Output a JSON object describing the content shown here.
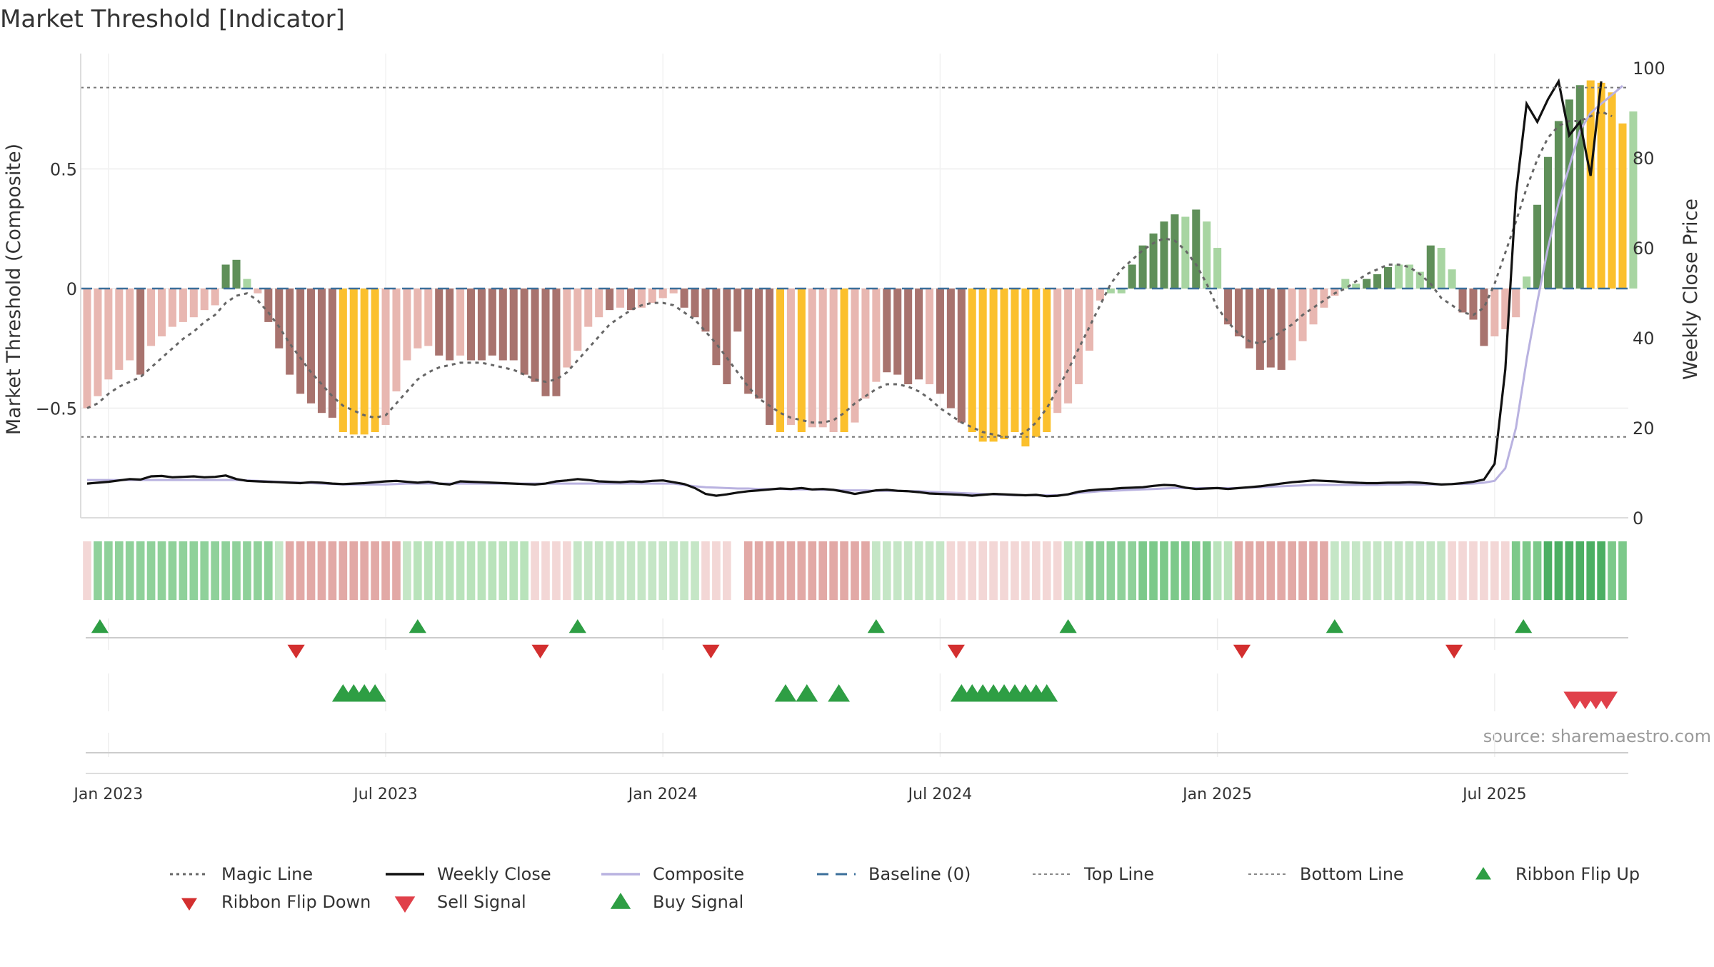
{
  "chart_data": {
    "type": "bar",
    "title": "Market Threshold [Indicator]",
    "ylabel": "Market Threshold (Composite)",
    "y2label": "Weekly Close Price",
    "source": "source: sharemaestro.com",
    "ylim": [
      -1.0,
      1.0
    ],
    "y2lim": [
      0,
      100
    ],
    "yticks": [
      {
        "v": 0.5,
        "t": "0.5"
      },
      {
        "v": 0,
        "t": "0"
      },
      {
        "v": -0.5,
        "t": "−0.5"
      }
    ],
    "y2ticks": [
      {
        "v": 0,
        "t": "0"
      },
      {
        "v": 20,
        "t": "20"
      },
      {
        "v": 40,
        "t": "40"
      },
      {
        "v": 60,
        "t": "60"
      },
      {
        "v": 80,
        "t": "80"
      },
      {
        "v": 100,
        "t": "100"
      }
    ],
    "xticks": [
      {
        "week": 2,
        "label": "Jan 2023"
      },
      {
        "week": 28,
        "label": "Jul 2023"
      },
      {
        "week": 54,
        "label": "Jan 2024"
      },
      {
        "week": 80,
        "label": "Jul 2024"
      },
      {
        "week": 106,
        "label": "Jan 2025"
      },
      {
        "week": 132,
        "label": "Jul 2025"
      }
    ],
    "weeks_total": 145,
    "top_line": 0.84,
    "bottom_line": -0.62,
    "colors": {
      "light_pink": "#e8b7b1",
      "dark_brown": "#a8736e",
      "yellow": "#fbc02d",
      "light_green": "#a8d5a2",
      "dark_green": "#5f8f59",
      "magic": "#666666",
      "close": "#111111",
      "composite": "#b9b2e0",
      "baseline": "#3b6f9a",
      "buy": "#2e9e44",
      "sell": "#d32f2f",
      "sell2": "#e0404a"
    },
    "series": [
      {
        "name": "Market Threshold (Composite)",
        "kind": "bars",
        "values": [
          -0.5,
          -0.45,
          -0.38,
          -0.34,
          -0.3,
          -0.36,
          -0.24,
          -0.2,
          -0.16,
          -0.14,
          -0.12,
          -0.09,
          -0.07,
          0.1,
          0.12,
          0.04,
          -0.02,
          -0.14,
          -0.25,
          -0.36,
          -0.44,
          -0.48,
          -0.52,
          -0.54,
          -0.6,
          -0.61,
          -0.61,
          -0.6,
          -0.57,
          -0.43,
          -0.3,
          -0.25,
          -0.24,
          -0.28,
          -0.3,
          -0.28,
          -0.3,
          -0.3,
          -0.28,
          -0.3,
          -0.3,
          -0.36,
          -0.39,
          -0.45,
          -0.45,
          -0.33,
          -0.26,
          -0.16,
          -0.12,
          -0.09,
          -0.08,
          -0.09,
          -0.08,
          -0.06,
          -0.04,
          -0.02,
          -0.08,
          -0.12,
          -0.18,
          -0.32,
          -0.4,
          -0.18,
          -0.44,
          -0.46,
          -0.57,
          -0.6,
          -0.57,
          -0.6,
          -0.58,
          -0.58,
          -0.6,
          -0.6,
          -0.56,
          -0.46,
          -0.39,
          -0.35,
          -0.36,
          -0.4,
          -0.38,
          -0.4,
          -0.44,
          -0.5,
          -0.56,
          -0.6,
          -0.64,
          -0.64,
          -0.63,
          -0.6,
          -0.66,
          -0.62,
          -0.6,
          -0.52,
          -0.48,
          -0.4,
          -0.26,
          -0.05,
          -0.02,
          -0.02,
          0.1,
          0.18,
          0.23,
          0.28,
          0.31,
          0.3,
          0.33,
          0.28,
          0.17,
          -0.15,
          -0.2,
          -0.25,
          -0.34,
          -0.33,
          -0.34,
          -0.3,
          -0.22,
          -0.15,
          -0.08,
          -0.03,
          0.04,
          0.02,
          0.04,
          0.06,
          0.09,
          0.1,
          0.1,
          0.07,
          0.18,
          0.17,
          0.08,
          -0.1,
          -0.13,
          -0.24,
          -0.2,
          -0.17,
          -0.12,
          0.05,
          0.35,
          0.55,
          0.7,
          0.79,
          0.85,
          0.87,
          0.86,
          0.82,
          0.69,
          0.74
        ],
        "legend_color_key": "light_pink"
      },
      {
        "name": "Magic Line",
        "kind": "line",
        "values": [
          -0.5,
          -0.48,
          -0.44,
          -0.41,
          -0.39,
          -0.37,
          -0.33,
          -0.29,
          -0.25,
          -0.21,
          -0.18,
          -0.14,
          -0.11,
          -0.06,
          -0.03,
          -0.02,
          -0.05,
          -0.1,
          -0.16,
          -0.23,
          -0.29,
          -0.35,
          -0.4,
          -0.45,
          -0.49,
          -0.51,
          -0.53,
          -0.54,
          -0.53,
          -0.48,
          -0.43,
          -0.38,
          -0.35,
          -0.33,
          -0.32,
          -0.31,
          -0.31,
          -0.31,
          -0.32,
          -0.33,
          -0.34,
          -0.36,
          -0.38,
          -0.39,
          -0.38,
          -0.35,
          -0.3,
          -0.25,
          -0.2,
          -0.15,
          -0.12,
          -0.09,
          -0.07,
          -0.06,
          -0.06,
          -0.07,
          -0.1,
          -0.13,
          -0.18,
          -0.23,
          -0.29,
          -0.35,
          -0.41,
          -0.46,
          -0.49,
          -0.52,
          -0.54,
          -0.55,
          -0.56,
          -0.56,
          -0.55,
          -0.52,
          -0.48,
          -0.45,
          -0.42,
          -0.4,
          -0.4,
          -0.41,
          -0.43,
          -0.46,
          -0.5,
          -0.53,
          -0.56,
          -0.58,
          -0.6,
          -0.61,
          -0.62,
          -0.62,
          -0.6,
          -0.56,
          -0.5,
          -0.42,
          -0.34,
          -0.25,
          -0.16,
          -0.07,
          0.02,
          0.08,
          0.12,
          0.16,
          0.19,
          0.21,
          0.2,
          0.16,
          0.1,
          0.02,
          -0.08,
          -0.14,
          -0.19,
          -0.22,
          -0.23,
          -0.21,
          -0.18,
          -0.15,
          -0.11,
          -0.08,
          -0.05,
          -0.02,
          0,
          0.03,
          0.06,
          0.08,
          0.1,
          0.1,
          0.09,
          0.06,
          0.02,
          -0.04,
          -0.07,
          -0.1,
          -0.11,
          -0.08,
          0.02,
          0.15,
          0.28,
          0.42,
          0.54,
          0.63,
          0.68,
          0.7,
          0.7,
          0.72,
          0.74,
          0.72
        ],
        "legend_color_key": "magic"
      },
      {
        "name": "Weekly Close",
        "kind": "line",
        "axis": "right",
        "values": [
          7.6,
          7.8,
          8,
          8.3,
          8.6,
          8.5,
          9.2,
          9.3,
          9,
          9.1,
          9.2,
          9,
          9.1,
          9.4,
          8.6,
          8.2,
          8.1,
          8,
          7.9,
          7.8,
          7.7,
          7.9,
          7.8,
          7.6,
          7.5,
          7.6,
          7.7,
          7.9,
          8.1,
          8.2,
          8,
          7.8,
          8,
          7.6,
          7.4,
          8.1,
          8,
          7.9,
          7.8,
          7.7,
          7.6,
          7.5,
          7.4,
          7.6,
          8.1,
          8.3,
          8.6,
          8.4,
          8.1,
          8,
          7.9,
          8.1,
          8,
          8.2,
          8.3,
          7.9,
          7.5,
          6.6,
          5.3,
          4.9,
          5.2,
          5.6,
          5.9,
          6.1,
          6.3,
          6.5,
          6.4,
          6.6,
          6.3,
          6.4,
          6.2,
          5.8,
          5.3,
          5.7,
          6.1,
          6.2,
          6,
          5.9,
          5.7,
          5.4,
          5.3,
          5.2,
          5.1,
          4.9,
          5.1,
          5.3,
          5.2,
          5.1,
          5,
          5.1,
          4.8,
          4.9,
          5.2,
          5.8,
          6.1,
          6.3,
          6.4,
          6.6,
          6.7,
          6.8,
          7.1,
          7.3,
          7.2,
          6.7,
          6.4,
          6.5,
          6.6,
          6.4,
          6.6,
          6.8,
          7,
          7.3,
          7.6,
          7.9,
          8.1,
          8.3,
          8.2,
          8.1,
          7.9,
          7.8,
          7.7,
          7.7,
          7.8,
          7.8,
          7.9,
          7.8,
          7.6,
          7.4,
          7.5,
          7.7,
          8,
          8.5,
          12,
          33,
          72,
          92,
          88,
          93,
          97,
          85,
          88,
          76,
          97
        ],
        "legend_color_key": "close"
      },
      {
        "name": "Composite",
        "kind": "line",
        "axis": "right",
        "values": [
          8.4,
          8.4,
          8.4,
          8.4,
          8.4,
          8.4,
          8.4,
          8.4,
          8.4,
          8.4,
          8.4,
          8.4,
          8.4,
          8.4,
          8.4,
          8.3,
          8.2,
          8.1,
          8,
          7.9,
          7.8,
          7.7,
          7.6,
          7.5,
          7.4,
          7.4,
          7.4,
          7.4,
          7.4,
          7.5,
          7.6,
          7.6,
          7.6,
          7.6,
          7.6,
          7.6,
          7.6,
          7.6,
          7.6,
          7.6,
          7.6,
          7.6,
          7.6,
          7.6,
          7.6,
          7.6,
          7.6,
          7.6,
          7.6,
          7.6,
          7.6,
          7.6,
          7.6,
          7.6,
          7.6,
          7.6,
          7.3,
          7,
          6.8,
          6.7,
          6.6,
          6.5,
          6.5,
          6.4,
          6.4,
          6.4,
          6.3,
          6.3,
          6.3,
          6.2,
          6.2,
          6.1,
          6.1,
          6.1,
          6,
          6,
          6,
          5.9,
          5.9,
          5.8,
          5.7,
          5.6,
          5.5,
          5.4,
          5.3,
          5.2,
          5.1,
          5,
          5,
          5,
          5,
          5,
          5.2,
          5.5,
          5.7,
          5.9,
          6,
          6.1,
          6.2,
          6.3,
          6.4,
          6.5,
          6.6,
          6.6,
          6.6,
          6.6,
          6.6,
          6.6,
          6.6,
          6.7,
          6.8,
          6.9,
          7,
          7.1,
          7.2,
          7.3,
          7.3,
          7.3,
          7.3,
          7.3,
          7.3,
          7.3,
          7.4,
          7.4,
          7.4,
          7.4,
          7.4,
          7.4,
          7.5,
          7.5,
          7.6,
          7.8,
          8.2,
          11,
          20,
          35,
          48,
          60,
          70,
          78,
          86,
          90,
          92,
          94,
          96
        ],
        "legend_color_key": "composite"
      }
    ],
    "bar_color_keys": [
      "light_pink",
      "light_pink",
      "light_pink",
      "light_pink",
      "light_pink",
      "dark_brown",
      "light_pink",
      "light_pink",
      "light_pink",
      "light_pink",
      "light_pink",
      "light_pink",
      "light_pink",
      "dark_green",
      "dark_green",
      "light_green",
      "light_pink",
      "dark_brown",
      "dark_brown",
      "dark_brown",
      "dark_brown",
      "dark_brown",
      "dark_brown",
      "dark_brown",
      "yellow",
      "yellow",
      "yellow",
      "yellow",
      "light_pink",
      "light_pink",
      "light_pink",
      "light_pink",
      "light_pink",
      "dark_brown",
      "dark_brown",
      "light_pink",
      "dark_brown",
      "dark_brown",
      "dark_brown",
      "dark_brown",
      "dark_brown",
      "dark_brown",
      "dark_brown",
      "dark_brown",
      "dark_brown",
      "light_pink",
      "light_pink",
      "light_pink",
      "light_pink",
      "dark_brown",
      "light_pink",
      "dark_brown",
      "light_pink",
      "light_pink",
      "light_pink",
      "light_pink",
      "dark_brown",
      "dark_brown",
      "dark_brown",
      "dark_brown",
      "dark_brown",
      "dark_brown",
      "dark_brown",
      "dark_brown",
      "dark_brown",
      "yellow",
      "light_pink",
      "yellow",
      "light_pink",
      "light_pink",
      "light_pink",
      "yellow",
      "light_pink",
      "light_pink",
      "light_pink",
      "dark_brown",
      "dark_brown",
      "dark_brown",
      "dark_brown",
      "light_pink",
      "dark_brown",
      "dark_brown",
      "dark_brown",
      "yellow",
      "yellow",
      "yellow",
      "yellow",
      "yellow",
      "yellow",
      "yellow",
      "yellow",
      "light_pink",
      "light_pink",
      "light_pink",
      "light_pink",
      "light_pink",
      "light_green",
      "light_green",
      "dark_green",
      "dark_green",
      "dark_green",
      "dark_green",
      "dark_green",
      "light_green",
      "dark_green",
      "light_green",
      "light_green",
      "dark_brown",
      "dark_brown",
      "dark_brown",
      "dark_brown",
      "dark_brown",
      "dark_brown",
      "light_pink",
      "light_pink",
      "light_pink",
      "light_pink",
      "light_pink",
      "light_green",
      "light_green",
      "dark_green",
      "dark_green",
      "dark_green",
      "light_green",
      "light_green",
      "light_green",
      "dark_green",
      "light_green",
      "light_green",
      "dark_brown",
      "dark_brown",
      "dark_brown",
      "light_pink",
      "light_pink",
      "light_pink",
      "light_green",
      "dark_green",
      "dark_green",
      "dark_green",
      "dark_green",
      "dark_green",
      "yellow",
      "yellow",
      "yellow",
      "yellow",
      "light_green",
      "light_green"
    ],
    "ribbon": {
      "cell_colors": [
        "#f3d7d6",
        "#8fd19a",
        "#8fd19a",
        "#8fd19a",
        "#8fd19a",
        "#8fd19a",
        "#8fd19a",
        "#8fd19a",
        "#8fd19a",
        "#8fd19a",
        "#8fd19a",
        "#8fd19a",
        "#8fd19a",
        "#8fd19a",
        "#8fd19a",
        "#8fd19a",
        "#8fd19a",
        "#8fd19a",
        "#c5e6c6",
        "#e2a9a6",
        "#e2a9a6",
        "#e2a9a6",
        "#e2a9a6",
        "#e2a9a6",
        "#e2a9a6",
        "#e2a9a6",
        "#e2a9a6",
        "#e2a9a6",
        "#e2a9a6",
        "#e2a9a6",
        "#c5e6c6",
        "#b9e3bb",
        "#b9e3bb",
        "#b9e3bb",
        "#b9e3bb",
        "#b9e3bb",
        "#b9e3bb",
        "#b9e3bb",
        "#b9e3bb",
        "#b9e3bb",
        "#b9e3bb",
        "#b9e3bb",
        "#f3d7d6",
        "#f3d7d6",
        "#f3d7d6",
        "#f3d7d6",
        "#c5e6c6",
        "#c5e6c6",
        "#c5e6c6",
        "#c5e6c6",
        "#c5e6c6",
        "#c5e6c6",
        "#c5e6c6",
        "#c5e6c6",
        "#c5e6c6",
        "#c5e6c6",
        "#c5e6c6",
        "#c5e6c6",
        "#f3d7d6",
        "#f3d7d6",
        "#f3d7d6",
        "#ffffff",
        "#e2a9a6",
        "#e2a9a6",
        "#e2a9a6",
        "#e2a9a6",
        "#e2a9a6",
        "#e2a9a6",
        "#e2a9a6",
        "#e2a9a6",
        "#e2a9a6",
        "#e2a9a6",
        "#e2a9a6",
        "#e2a9a6",
        "#c5e6c6",
        "#c5e6c6",
        "#c5e6c6",
        "#c5e6c6",
        "#c5e6c6",
        "#c5e6c6",
        "#c5e6c6",
        "#f3d7d6",
        "#f3d7d6",
        "#f3d7d6",
        "#f3d7d6",
        "#f3d7d6",
        "#f3d7d6",
        "#f3d7d6",
        "#f3d7d6",
        "#f3d7d6",
        "#f3d7d6",
        "#f3d7d6",
        "#b9e3bb",
        "#b9e3bb",
        "#8fd19a",
        "#8fd19a",
        "#8fd19a",
        "#8fd19a",
        "#8fd19a",
        "#7cc98a",
        "#7cc98a",
        "#7cc98a",
        "#7cc98a",
        "#7cc98a",
        "#7cc98a",
        "#7cc98a",
        "#b9e3bb",
        "#b9e3bb",
        "#e2a9a6",
        "#e2a9a6",
        "#e2a9a6",
        "#e2a9a6",
        "#e2a9a6",
        "#e2a9a6",
        "#e2a9a6",
        "#e2a9a6",
        "#e2a9a6",
        "#c5e6c6",
        "#c5e6c6",
        "#c5e6c6",
        "#c5e6c6",
        "#c5e6c6",
        "#c5e6c6",
        "#c5e6c6",
        "#c5e6c6",
        "#c5e6c6",
        "#c5e6c6",
        "#c5e6c6",
        "#f3d7d6",
        "#f3d7d6",
        "#f3d7d6",
        "#f3d7d6",
        "#f3d7d6",
        "#f3d7d6",
        "#7cc98a",
        "#7cc98a",
        "#7cc98a",
        "#4caf63",
        "#4caf63",
        "#4caf63",
        "#4caf63",
        "#4caf63",
        "#4caf63",
        "#7cc98a",
        "#7cc98a"
      ]
    },
    "markers": {
      "ribbon_flip_up": [
        1.2,
        31,
        46,
        74,
        92,
        117,
        134.7
      ],
      "ribbon_flip_down": [
        19.6,
        42.5,
        58.5,
        81.5,
        108.3,
        128.2
      ],
      "buy_signal": [
        24,
        25,
        26,
        27,
        65.5,
        67.5,
        70.5,
        82,
        83,
        84,
        85,
        86,
        87,
        88,
        89,
        90
      ],
      "sell_signal": [
        139.5,
        140.5,
        141.5,
        142.5
      ]
    },
    "legend": [
      {
        "label": "Magic Line",
        "style": "dotted",
        "color_key": "magic"
      },
      {
        "label": "Weekly Close",
        "style": "solid",
        "color_key": "close"
      },
      {
        "label": "Composite",
        "style": "solid",
        "color_key": "composite"
      },
      {
        "label": "Baseline (0)",
        "style": "dashed",
        "color_key": "baseline"
      },
      {
        "label": "Top Line",
        "style": "dotted-thin",
        "color_key": "magic"
      },
      {
        "label": "Bottom Line",
        "style": "dotted-thin",
        "color_key": "magic"
      },
      {
        "label": "Ribbon Flip Up",
        "style": "triangle-up",
        "color_key": "buy"
      },
      {
        "label": "Ribbon Flip Down",
        "style": "triangle-down",
        "color_key": "sell"
      },
      {
        "label": "Sell Signal",
        "style": "triangle-down-lg",
        "color_key": "sell2"
      },
      {
        "label": "Buy Signal",
        "style": "triangle-up-lg",
        "color_key": "buy"
      }
    ]
  }
}
